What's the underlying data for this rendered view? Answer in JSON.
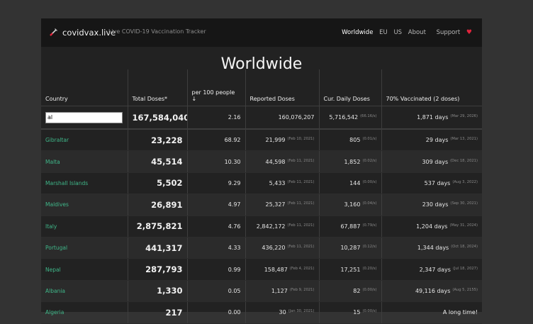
{
  "nav": {
    "brand": "covidvax.live",
    "tagline": "Live COVID-19 Vaccination Tracker",
    "links": [
      "Worldwide",
      "EU",
      "US",
      "About",
      "Support"
    ]
  },
  "page": {
    "title": "Worldwide"
  },
  "table": {
    "headers": [
      "Country",
      "Total Doses*",
      "per 100 people ↓",
      "Reported Doses",
      "Cur. Daily Doses",
      "70% Vaccinated (2 doses)"
    ],
    "filter": {
      "value": "al",
      "total": "167,584,040",
      "per100": "2.16",
      "reported": "160,076,207",
      "daily": "5,716,542",
      "daily_rate": "(66.16/s)",
      "vacc": "1,871 days",
      "vacc_date": "(Mar 29, 2026)"
    },
    "rows": [
      {
        "country": "Gibraltar",
        "total": "23,228",
        "per100": "68.92",
        "reported": "21,999",
        "reported_date": "(Feb 10, 2021)",
        "daily": "805",
        "daily_rate": "(0.01/s)",
        "vacc": "29 days",
        "vacc_date": "(Mar 13, 2021)"
      },
      {
        "country": "Malta",
        "total": "45,514",
        "per100": "10.30",
        "reported": "44,598",
        "reported_date": "(Feb 11, 2021)",
        "daily": "1,852",
        "daily_rate": "(0.02/s)",
        "vacc": "309 days",
        "vacc_date": "(Dec 18, 2021)"
      },
      {
        "country": "Marshall Islands",
        "total": "5,502",
        "per100": "9.29",
        "reported": "5,433",
        "reported_date": "(Feb 11, 2021)",
        "daily": "144",
        "daily_rate": "(0.00/s)",
        "vacc": "537 days",
        "vacc_date": "(Aug 3, 2022)"
      },
      {
        "country": "Maldives",
        "total": "26,891",
        "per100": "4.97",
        "reported": "25,327",
        "reported_date": "(Feb 11, 2021)",
        "daily": "3,160",
        "daily_rate": "(0.04/s)",
        "vacc": "230 days",
        "vacc_date": "(Sep 30, 2021)"
      },
      {
        "country": "Italy",
        "total": "2,875,821",
        "per100": "4.76",
        "reported": "2,842,172",
        "reported_date": "(Feb 11, 2021)",
        "daily": "67,887",
        "daily_rate": "(0.79/s)",
        "vacc": "1,204 days",
        "vacc_date": "(May 31, 2024)"
      },
      {
        "country": "Portugal",
        "total": "441,317",
        "per100": "4.33",
        "reported": "436,220",
        "reported_date": "(Feb 11, 2021)",
        "daily": "10,287",
        "daily_rate": "(0.12/s)",
        "vacc": "1,344 days",
        "vacc_date": "(Oct 18, 2024)"
      },
      {
        "country": "Nepal",
        "total": "287,793",
        "per100": "0.99",
        "reported": "158,487",
        "reported_date": "(Feb 4, 2021)",
        "daily": "17,251",
        "daily_rate": "(0.20/s)",
        "vacc": "2,347 days",
        "vacc_date": "(Jul 18, 2027)"
      },
      {
        "country": "Albania",
        "total": "1,330",
        "per100": "0.05",
        "reported": "1,127",
        "reported_date": "(Feb 9, 2021)",
        "daily": "82",
        "daily_rate": "(0.00/s)",
        "vacc": "49,116 days",
        "vacc_date": "(Aug 5, 2155)"
      },
      {
        "country": "Algeria",
        "total": "217",
        "per100": "0.00",
        "reported": "30",
        "reported_date": "(Jan 30, 2021)",
        "daily": "15",
        "daily_rate": "(0.00/s)",
        "vacc": "A long time!",
        "vacc_date": ""
      }
    ]
  },
  "colors": {
    "accent": "#3fb789",
    "heart": "#e0243c",
    "background": "#333333",
    "panel": "#222222",
    "nav": "#161616"
  }
}
